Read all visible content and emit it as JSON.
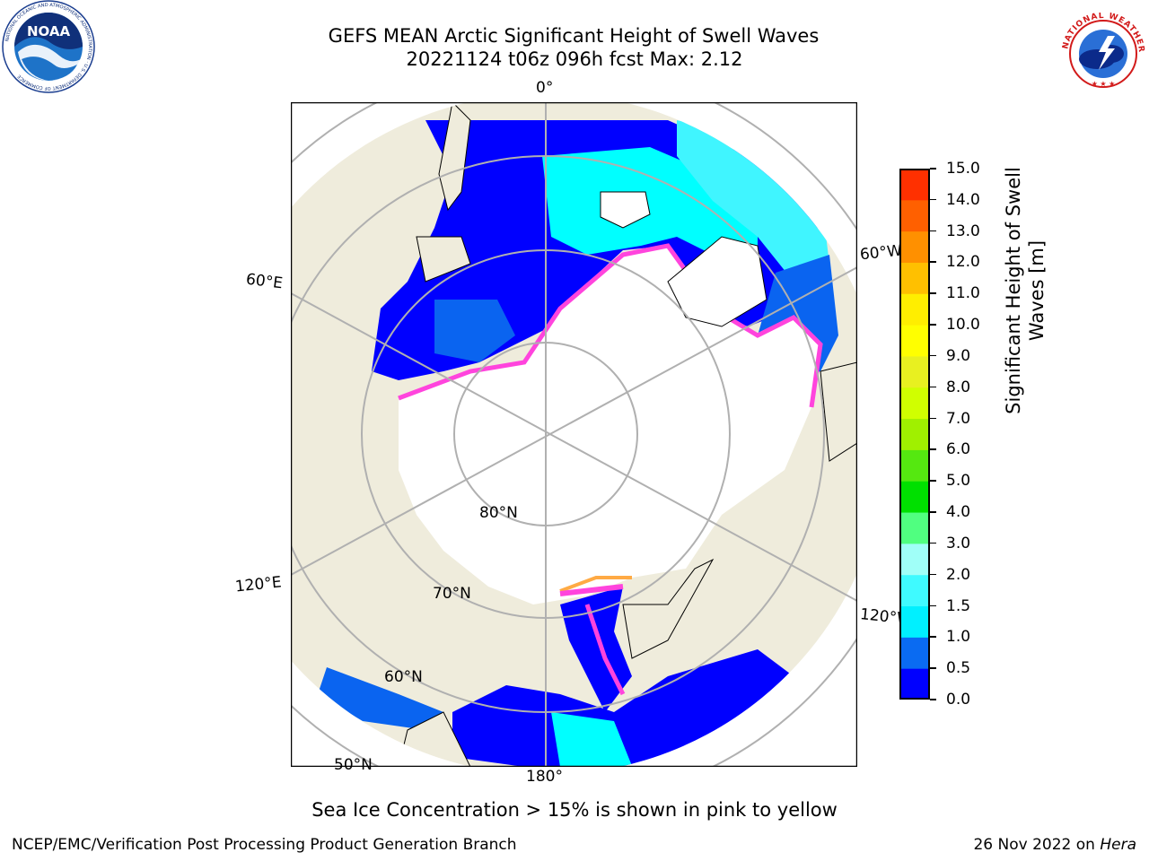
{
  "header": {
    "title_line1": "GEFS MEAN Arctic Significant Height of Swell Waves",
    "title_line2": "20221124 t06z 096h fcst   Max: 2.12"
  },
  "logos": {
    "noaa": {
      "text": "NOAA",
      "ring_text": "NATIONAL OCEANIC AND ATMOSPHERIC ADMINISTRATION · U.S. DEPARTMENT OF COMMERCE"
    },
    "nws": {
      "ring_text": "NATIONAL WEATHER SERVICE"
    }
  },
  "map": {
    "projection": "north-polar-stereographic",
    "lon_labels": {
      "top": "0°",
      "bottom": "180°",
      "left_upper": "60°E",
      "left_lower": "120°E",
      "right_upper": "60°W",
      "right_lower": "120°W"
    },
    "lat_labels": {
      "lat80": "80°N",
      "lat70": "70°N",
      "lat60": "60°N",
      "lat50": "50°N"
    },
    "colors": {
      "land": "#efecdc",
      "sea_ice": "#ffffff",
      "grid": "#b0b0b0",
      "swell_0_05": "#0000ff",
      "swell_05_10": "#0a64f0",
      "swell_10_15": "#00ffff",
      "swell_15_20": "#40ffff",
      "ice_edge_pink": "#ff44dd",
      "ice_edge_orange": "#ffaa44"
    }
  },
  "colorbar": {
    "label": "Significant Height of Swell Waves [m]",
    "label_line1": "Significant Height of Swell",
    "label_line2": "Waves [m]",
    "ticks": [
      "0.0",
      "0.5",
      "1.0",
      "1.5",
      "2.0",
      "3.0",
      "4.0",
      "5.0",
      "6.0",
      "7.0",
      "8.0",
      "9.0",
      "10.0",
      "11.0",
      "12.0",
      "13.0",
      "14.0",
      "15.0"
    ],
    "colors": [
      "#0000ff",
      "#0a6bf2",
      "#00f0ff",
      "#3ffaff",
      "#a0fff8",
      "#50ff80",
      "#00e000",
      "#55e810",
      "#a0f000",
      "#d0ff00",
      "#e8f020",
      "#ffff00",
      "#ffee00",
      "#ffc000",
      "#ff9000",
      "#ff6000",
      "#ff3000",
      "#ff0000"
    ]
  },
  "note": "Sea Ice Concentration > 15% is shown in pink to yellow",
  "footer": {
    "left": "NCEP/EMC/Verification Post Processing Product Generation Branch",
    "date": "26 Nov 2022 on ",
    "host": "Hera"
  }
}
